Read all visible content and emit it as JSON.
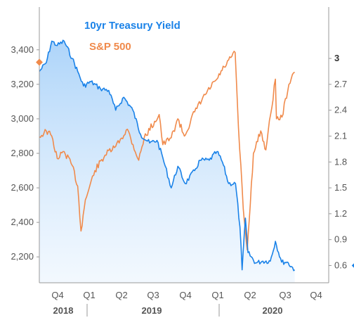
{
  "chart_data": {
    "type": "line",
    "legend_position": "top-left",
    "grid": false,
    "x_axis": {
      "quarters": [
        "Q4",
        "Q1",
        "Q2",
        "Q3",
        "Q4",
        "Q1",
        "Q2",
        "Q3",
        "Q4"
      ],
      "years": [
        "2018",
        "2019",
        "2020"
      ]
    },
    "left_axis": {
      "ticks": [
        "3,400",
        "3,200",
        "3,000",
        "2,800",
        "2,600",
        "2,400",
        "2,200"
      ],
      "range": [
        2050,
        3550
      ]
    },
    "right_axis": {
      "ticks": [
        "3",
        "2.7",
        "2.4",
        "2.1",
        "1.8",
        "1.5",
        "1.2",
        "0.9",
        "0.6"
      ],
      "range": [
        0.4,
        3.4
      ],
      "bold_tick": "3"
    },
    "colors": {
      "treasury": "#1a82e8",
      "sp500": "#f08a4b",
      "axis": "#999999"
    },
    "series": [
      {
        "name": "10yr Treasury Yield",
        "axis": "right",
        "x": [
          "2018-09-01",
          "2018-09-20",
          "2018-10-05",
          "2018-10-20",
          "2018-11-08",
          "2018-11-30",
          "2018-12-15",
          "2018-12-31",
          "2019-01-20",
          "2019-02-15",
          "2019-03-10",
          "2019-03-29",
          "2019-04-20",
          "2019-05-15",
          "2019-06-05",
          "2019-06-30",
          "2019-07-20",
          "2019-08-05",
          "2019-08-28",
          "2019-09-15",
          "2019-10-05",
          "2019-10-31",
          "2019-11-15",
          "2019-12-10",
          "2019-12-31",
          "2020-01-15",
          "2020-02-01",
          "2020-02-20",
          "2020-03-03",
          "2020-03-09",
          "2020-03-18",
          "2020-03-25",
          "2020-04-15",
          "2020-05-05",
          "2020-05-25",
          "2020-06-08",
          "2020-06-25",
          "2020-07-10",
          "2020-07-31"
        ],
        "values": [
          2.85,
          2.95,
          3.2,
          3.15,
          3.2,
          3.0,
          2.85,
          2.68,
          2.73,
          2.65,
          2.63,
          2.4,
          2.55,
          2.4,
          2.12,
          2.02,
          2.05,
          1.85,
          1.5,
          1.75,
          1.55,
          1.7,
          1.82,
          1.82,
          1.92,
          1.8,
          1.55,
          1.55,
          1.05,
          0.55,
          1.15,
          0.75,
          0.63,
          0.65,
          0.65,
          0.88,
          0.64,
          0.64,
          0.55
        ]
      },
      {
        "name": "S&P 500",
        "axis": "left",
        "x": [
          "2018-09-01",
          "2018-09-20",
          "2018-10-05",
          "2018-10-20",
          "2018-11-08",
          "2018-11-30",
          "2018-12-15",
          "2018-12-24",
          "2019-01-05",
          "2019-01-31",
          "2019-02-28",
          "2019-03-29",
          "2019-04-30",
          "2019-05-31",
          "2019-06-15",
          "2019-07-26",
          "2019-08-05",
          "2019-08-28",
          "2019-09-15",
          "2019-10-03",
          "2019-10-31",
          "2019-11-29",
          "2019-12-31",
          "2020-01-20",
          "2020-02-19",
          "2020-02-28",
          "2020-03-12",
          "2020-03-23",
          "2020-04-09",
          "2020-04-29",
          "2020-05-13",
          "2020-06-08",
          "2020-06-11",
          "2020-06-26",
          "2020-07-15",
          "2020-07-31"
        ],
        "values": [
          2895,
          2930,
          2900,
          2770,
          2810,
          2730,
          2610,
          2350,
          2530,
          2700,
          2790,
          2840,
          2940,
          2760,
          2890,
          3025,
          2850,
          2890,
          3000,
          2900,
          3040,
          3140,
          3230,
          3300,
          3385,
          2950,
          2480,
          2240,
          2800,
          2930,
          2820,
          3230,
          3000,
          3010,
          3200,
          3270
        ]
      }
    ]
  }
}
